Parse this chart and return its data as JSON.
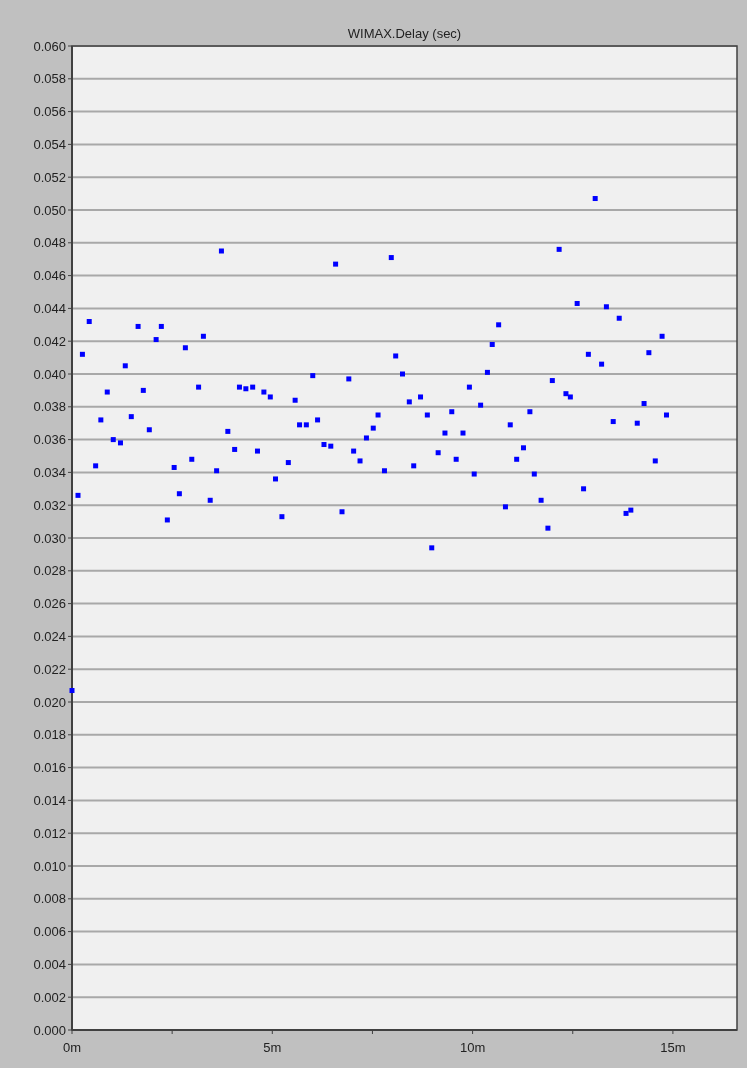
{
  "chart_data": {
    "type": "scatter",
    "title": "WIMAX.Delay (sec)",
    "xlim": [
      0,
      16.6
    ],
    "ylim": [
      0,
      0.06
    ],
    "xticks": [
      {
        "value": 0,
        "label": "0m"
      },
      {
        "value": 2.5,
        "label": null
      },
      {
        "value": 5,
        "label": "5m"
      },
      {
        "value": 7.5,
        "label": null
      },
      {
        "value": 10,
        "label": "10m"
      },
      {
        "value": 12.5,
        "label": null
      },
      {
        "value": 15,
        "label": "15m"
      }
    ],
    "yticks": [
      {
        "value": 0,
        "label": "0.000"
      },
      {
        "value": 0.002,
        "label": "0.002"
      },
      {
        "value": 0.004,
        "label": "0.004"
      },
      {
        "value": 0.006,
        "label": "0.006"
      },
      {
        "value": 0.008,
        "label": "0.008"
      },
      {
        "value": 0.01,
        "label": "0.010"
      },
      {
        "value": 0.012,
        "label": "0.012"
      },
      {
        "value": 0.014,
        "label": "0.014"
      },
      {
        "value": 0.016,
        "label": "0.016"
      },
      {
        "value": 0.018,
        "label": "0.018"
      },
      {
        "value": 0.02,
        "label": "0.020"
      },
      {
        "value": 0.022,
        "label": "0.022"
      },
      {
        "value": 0.024,
        "label": "0.024"
      },
      {
        "value": 0.026,
        "label": "0.026"
      },
      {
        "value": 0.028,
        "label": "0.028"
      },
      {
        "value": 0.03,
        "label": "0.030"
      },
      {
        "value": 0.032,
        "label": "0.032"
      },
      {
        "value": 0.034,
        "label": "0.034"
      },
      {
        "value": 0.036,
        "label": "0.036"
      },
      {
        "value": 0.038,
        "label": "0.038"
      },
      {
        "value": 0.04,
        "label": "0.040"
      },
      {
        "value": 0.042,
        "label": "0.042"
      },
      {
        "value": 0.044,
        "label": "0.044"
      },
      {
        "value": 0.046,
        "label": "0.046"
      },
      {
        "value": 0.048,
        "label": "0.048"
      },
      {
        "value": 0.05,
        "label": "0.050"
      },
      {
        "value": 0.052,
        "label": "0.052"
      },
      {
        "value": 0.054,
        "label": "0.054"
      },
      {
        "value": 0.056,
        "label": "0.056"
      },
      {
        "value": 0.058,
        "label": "0.058"
      },
      {
        "value": 0.06,
        "label": "0.060"
      }
    ],
    "grid": "y",
    "marker": "square",
    "series": [
      {
        "color": "#0000ff",
        "x": [
          0,
          0.15,
          0.26,
          0.43,
          0.59,
          0.72,
          0.88,
          1.03,
          1.21,
          1.33,
          1.48,
          1.65,
          1.78,
          1.93,
          2.1,
          2.23,
          2.38,
          2.55,
          2.68,
          2.83,
          2.99,
          3.16,
          3.28,
          3.45,
          3.61,
          3.73,
          3.89,
          4.06,
          4.18,
          4.34,
          4.51,
          4.63,
          4.79,
          4.95,
          5.08,
          5.24,
          5.4,
          5.57,
          5.68,
          5.85,
          6.01,
          6.13,
          6.29,
          6.46,
          6.58,
          6.74,
          6.91,
          7.03,
          7.19,
          7.35,
          7.52,
          7.64,
          7.8,
          7.97,
          8.08,
          8.25,
          8.42,
          8.53,
          8.7,
          8.87,
          8.98,
          9.14,
          9.31,
          9.48,
          9.59,
          9.76,
          9.92,
          10.04,
          10.2,
          10.37,
          10.49,
          10.65,
          10.82,
          10.94,
          11.1,
          11.27,
          11.43,
          11.54,
          11.71,
          11.88,
          11.99,
          12.16,
          12.33,
          12.44,
          12.61,
          12.77,
          12.89,
          13.06,
          13.22,
          13.34,
          13.51,
          13.66,
          13.83,
          13.95,
          14.11,
          14.28,
          14.4,
          14.56,
          14.73,
          14.84
        ],
        "values": [
          0.0207,
          0.0326,
          0.0412,
          0.0432,
          0.0344,
          0.0372,
          0.0389,
          0.036,
          0.0358,
          0.0405,
          0.0374,
          0.0429,
          0.039,
          0.0366,
          0.0421,
          0.0429,
          0.0311,
          0.0343,
          0.0327,
          0.0416,
          0.0348,
          0.0392,
          0.0423,
          0.0323,
          0.0341,
          0.0475,
          0.0365,
          0.0354,
          0.0392,
          0.0391,
          0.0392,
          0.0353,
          0.0389,
          0.0386,
          0.0336,
          0.0313,
          0.0346,
          0.0384,
          0.0369,
          0.0369,
          0.0399,
          0.0372,
          0.0357,
          0.0356,
          0.0467,
          0.0316,
          0.0397,
          0.0353,
          0.0347,
          0.0361,
          0.0367,
          0.0375,
          0.0341,
          0.0471,
          0.0411,
          0.04,
          0.0383,
          0.0344,
          0.0386,
          0.0375,
          0.0294,
          0.0352,
          0.0364,
          0.0377,
          0.0348,
          0.0364,
          0.0392,
          0.0339,
          0.0381,
          0.0401,
          0.0418,
          0.043,
          0.0319,
          0.0369,
          0.0348,
          0.0355,
          0.0377,
          0.0339,
          0.0323,
          0.0306,
          0.0396,
          0.0476,
          0.0388,
          0.0386,
          0.0443,
          0.033,
          0.0412,
          0.0507,
          0.0406,
          0.0441,
          0.0371,
          0.0434,
          0.0315,
          0.0317,
          0.037,
          0.0382,
          0.0413,
          0.0347,
          0.0423,
          0.0375
        ]
      }
    ]
  }
}
